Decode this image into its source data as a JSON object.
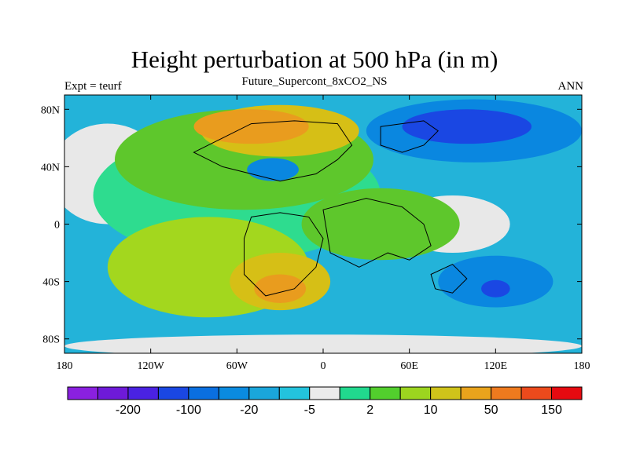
{
  "title": "Height perturbation at 500 hPa (in m)",
  "subtitle": "Future_Supercont_8xCO2_NS",
  "left_string": "Expt = teurf",
  "right_string": "ANN",
  "map": {
    "projection": "cylindrical-equidistant",
    "lon_range": [
      -180,
      180
    ],
    "lat_range": [
      -90,
      90
    ],
    "x_ticks": [
      {
        "lon": -180,
        "label": "180"
      },
      {
        "lon": -120,
        "label": "120W"
      },
      {
        "lon": -60,
        "label": "60W"
      },
      {
        "lon": 0,
        "label": "0"
      },
      {
        "lon": 60,
        "label": "60E"
      },
      {
        "lon": 120,
        "label": "120E"
      },
      {
        "lon": 180,
        "label": "180"
      }
    ],
    "y_ticks": [
      {
        "lat": 80,
        "label": "80N"
      },
      {
        "lat": 40,
        "label": "40N"
      },
      {
        "lat": 0,
        "label": "0"
      },
      {
        "lat": -40,
        "label": "40S"
      },
      {
        "lat": -80,
        "label": "80S"
      }
    ],
    "background_color": "#23b3d9",
    "regions": [
      {
        "level": "3",
        "color": "#e8e8e8",
        "lon": -150,
        "lat": 35,
        "rx": 40,
        "ry": 35
      },
      {
        "level": "3",
        "color": "#e8e8e8",
        "lon": 90,
        "lat": 0,
        "rx": 40,
        "ry": 20
      },
      {
        "level": "3",
        "color": "#e8e8e8",
        "lon": 0,
        "lat": -85,
        "rx": 180,
        "ry": 8
      },
      {
        "level": "4",
        "color": "#2edc8f",
        "lon": -60,
        "lat": 20,
        "rx": 100,
        "ry": 45
      },
      {
        "level": "5",
        "color": "#5ec72c",
        "lon": -55,
        "lat": 45,
        "rx": 90,
        "ry": 35
      },
      {
        "level": "5",
        "color": "#5ec72c",
        "lon": 40,
        "lat": 0,
        "rx": 55,
        "ry": 25
      },
      {
        "level": "6",
        "color": "#a3d71e",
        "lon": -80,
        "lat": -30,
        "rx": 70,
        "ry": 35
      },
      {
        "level": "7",
        "color": "#d6bf16",
        "lon": -30,
        "lat": 65,
        "rx": 55,
        "ry": 18
      },
      {
        "level": "8",
        "color": "#e99c1e",
        "lon": -50,
        "lat": 68,
        "rx": 40,
        "ry": 12
      },
      {
        "level": "7",
        "color": "#d6bf16",
        "lon": -30,
        "lat": -40,
        "rx": 35,
        "ry": 20
      },
      {
        "level": "8",
        "color": "#e99c1e",
        "lon": -30,
        "lat": -45,
        "rx": 18,
        "ry": 10
      },
      {
        "level": "2",
        "color": "#0a87e0",
        "lon": 105,
        "lat": 65,
        "rx": 75,
        "ry": 22
      },
      {
        "level": "1",
        "color": "#1a47e3",
        "lon": 100,
        "lat": 68,
        "rx": 45,
        "ry": 12
      },
      {
        "level": "2",
        "color": "#0a87e0",
        "lon": 120,
        "lat": -40,
        "rx": 40,
        "ry": 18
      },
      {
        "level": "1",
        "color": "#1a47e3",
        "lon": 120,
        "lat": -45,
        "rx": 10,
        "ry": 6
      },
      {
        "level": "2",
        "color": "#0a87e0",
        "lon": -35,
        "lat": 38,
        "rx": 18,
        "ry": 8
      }
    ]
  },
  "colorbar": {
    "colors": [
      "#8a20e0",
      "#6e1ad9",
      "#4a22e2",
      "#1a47e3",
      "#0a6fe0",
      "#0a8be0",
      "#1aa6db",
      "#23c3dd",
      "#ebebeb",
      "#21d98e",
      "#52cf2d",
      "#9cd51f",
      "#cfc31a",
      "#e9a31c",
      "#ee7a1e",
      "#ec4a1c",
      "#e60a10"
    ],
    "labels": [
      {
        "label": "-200",
        "index": 1
      },
      {
        "label": "-100",
        "index": 3
      },
      {
        "label": "-20",
        "index": 5
      },
      {
        "label": "-5",
        "index": 7
      },
      {
        "label": "2",
        "index": 9
      },
      {
        "label": "10",
        "index": 11
      },
      {
        "label": "50",
        "index": 13
      },
      {
        "label": "150",
        "index": 15
      }
    ]
  }
}
